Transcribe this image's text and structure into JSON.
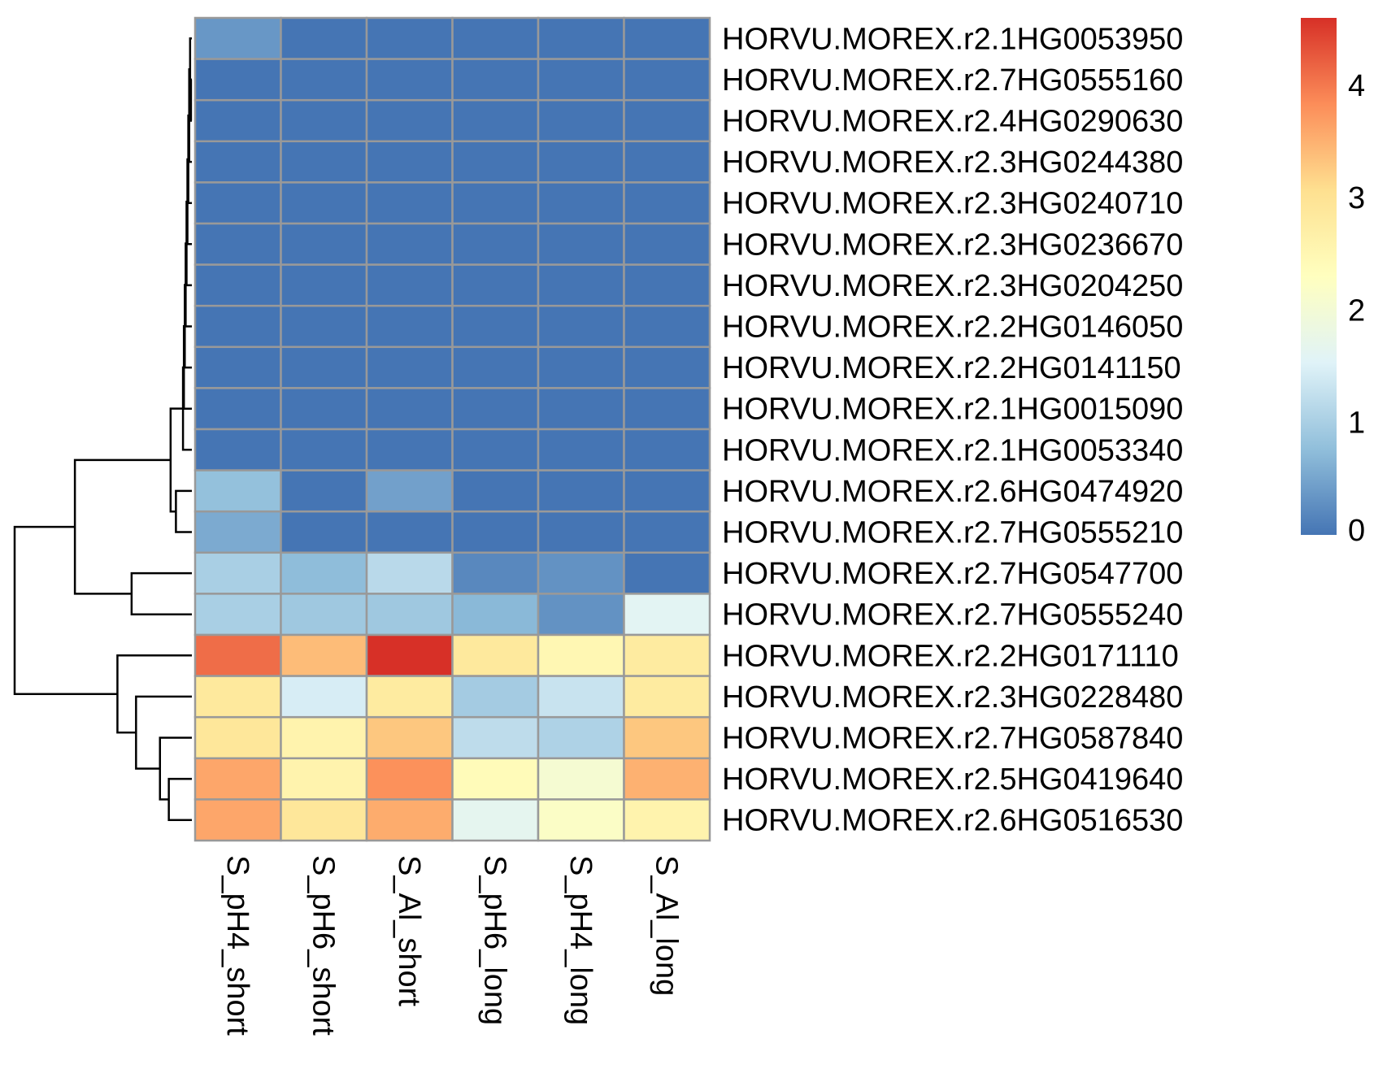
{
  "chart_data": {
    "type": "heatmap",
    "title": "",
    "xlabel": "",
    "ylabel": "",
    "columns": [
      "S_pH4_short",
      "S_pH6_short",
      "S_Al_short",
      "S_pH6_long",
      "S_pH4_long",
      "S_Al_long"
    ],
    "rows": [
      "HORVU.MOREX.r2.1HG0053950",
      "HORVU.MOREX.r2.7HG0555160",
      "HORVU.MOREX.r2.4HG0290630",
      "HORVU.MOREX.r2.3HG0244380",
      "HORVU.MOREX.r2.3HG0240710",
      "HORVU.MOREX.r2.3HG0236670",
      "HORVU.MOREX.r2.3HG0204250",
      "HORVU.MOREX.r2.2HG0146050",
      "HORVU.MOREX.r2.2HG0141150",
      "HORVU.MOREX.r2.1HG0015090",
      "HORVU.MOREX.r2.1HG0053340",
      "HORVU.MOREX.r2.6HG0474920",
      "HORVU.MOREX.r2.7HG0555210",
      "HORVU.MOREX.r2.7HG0547700",
      "HORVU.MOREX.r2.7HG0555240",
      "HORVU.MOREX.r2.2HG0171110",
      "HORVU.MOREX.r2.3HG0228480",
      "HORVU.MOREX.r2.7HG0587840",
      "HORVU.MOREX.r2.5HG0419640",
      "HORVU.MOREX.r2.6HG0516530"
    ],
    "values": [
      [
        0.35,
        0,
        0,
        0,
        0,
        0
      ],
      [
        0,
        0,
        0,
        0,
        0,
        0
      ],
      [
        0,
        0,
        0,
        0,
        0,
        0
      ],
      [
        0,
        0,
        0,
        0,
        0,
        0
      ],
      [
        0,
        0,
        0,
        0,
        0,
        0
      ],
      [
        0,
        0,
        0,
        0,
        0,
        0
      ],
      [
        0,
        0,
        0,
        0,
        0,
        0
      ],
      [
        0,
        0,
        0,
        0,
        0,
        0
      ],
      [
        0,
        0,
        0,
        0,
        0,
        0
      ],
      [
        0,
        0,
        0,
        0,
        0,
        0
      ],
      [
        0,
        0,
        0,
        0,
        0,
        0
      ],
      [
        0.8,
        0,
        0.45,
        0,
        0,
        0
      ],
      [
        0.55,
        0,
        0,
        0,
        0,
        0
      ],
      [
        1.0,
        0.75,
        1.15,
        0.2,
        0.3,
        0
      ],
      [
        1.0,
        0.9,
        0.9,
        0.7,
        0.3,
        1.6
      ],
      [
        4.1,
        3.4,
        4.6,
        2.85,
        2.5,
        2.8
      ],
      [
        2.85,
        1.45,
        2.8,
        0.95,
        1.3,
        2.8
      ],
      [
        2.9,
        2.6,
        3.3,
        1.2,
        1.05,
        3.3
      ],
      [
        3.6,
        2.6,
        3.8,
        2.4,
        2.05,
        3.5
      ],
      [
        3.6,
        2.9,
        3.55,
        1.65,
        2.2,
        2.6
      ]
    ],
    "color_scale": {
      "min": 0,
      "max": 4.6,
      "stops": [
        "#4575B4",
        "#91BFDB",
        "#E0F3F8",
        "#FFFFBF",
        "#FEE090",
        "#FC8D59",
        "#D73027"
      ],
      "ticks": [
        0,
        1,
        2,
        3,
        4
      ],
      "tick_labels": [
        "0",
        "1",
        "2",
        "3",
        "4"
      ]
    },
    "legend_position": "right",
    "cell_border_color": "#999999",
    "row_dendrogram": {
      "clusters": [
        {
          "children": [
            1,
            2
          ],
          "height": 0.05
        },
        {
          "children": [
            0,
            20
          ],
          "height": 0.1
        },
        {
          "children": [
            21,
            3
          ],
          "height": 0.15
        },
        {
          "children": [
            22,
            4
          ],
          "height": 0.2
        },
        {
          "children": [
            23,
            5
          ],
          "height": 0.25
        },
        {
          "children": [
            24,
            6
          ],
          "height": 0.3
        },
        {
          "children": [
            25,
            7
          ],
          "height": 0.35
        },
        {
          "children": [
            26,
            8
          ],
          "height": 0.4
        },
        {
          "children": [
            27,
            9
          ],
          "height": 0.45
        },
        {
          "children": [
            28,
            10
          ],
          "height": 0.5
        },
        {
          "children": [
            11,
            12
          ],
          "height": 0.9
        },
        {
          "children": [
            29,
            30
          ],
          "height": 1.2
        },
        {
          "children": [
            13,
            14
          ],
          "height": 3.4
        },
        {
          "children": [
            31,
            32
          ],
          "height": 6.6
        },
        {
          "children": [
            18,
            19
          ],
          "height": 1.3
        },
        {
          "children": [
            17,
            34
          ],
          "height": 1.8
        },
        {
          "children": [
            16,
            35
          ],
          "height": 3.15
        },
        {
          "children": [
            15,
            36
          ],
          "height": 4.2
        },
        {
          "children": [
            33,
            37
          ],
          "height": 10.0
        }
      ]
    }
  }
}
